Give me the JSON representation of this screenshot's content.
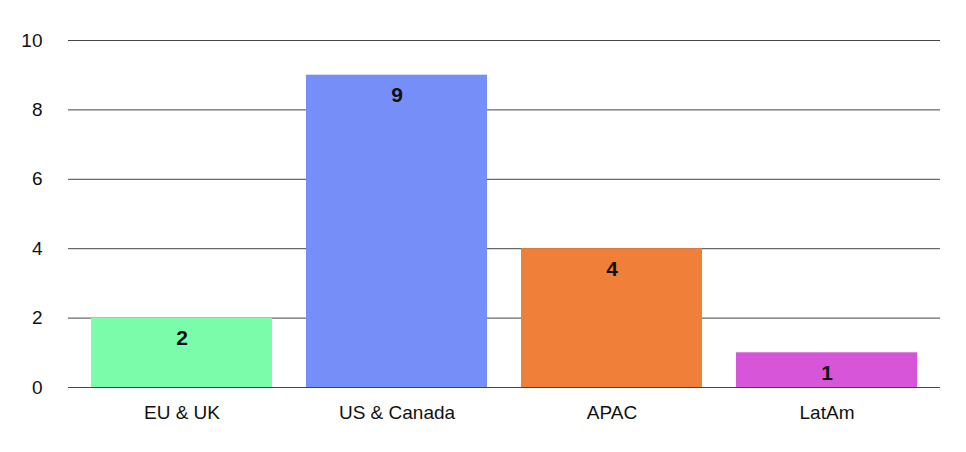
{
  "chart_data": {
    "type": "bar",
    "categories": [
      "EU & UK",
      "US & Canada",
      "APAC",
      "LatAm"
    ],
    "values": [
      2,
      9,
      4,
      1
    ],
    "colors": [
      "#7afcab",
      "#758ef8",
      "#ef7f39",
      "#d655d9"
    ],
    "ylim": [
      0,
      10
    ],
    "yticks": [
      0,
      2,
      4,
      6,
      8,
      10
    ],
    "grid": true,
    "data_labels": true
  }
}
